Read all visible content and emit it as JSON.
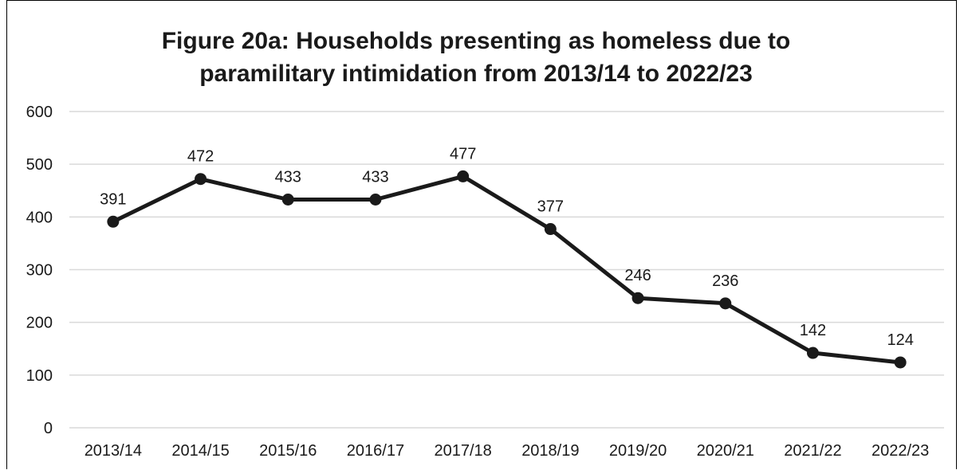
{
  "chart_data": {
    "type": "line",
    "title_lines": [
      "Figure 20a: Households presenting as homeless due to",
      "paramilitary intimidation from 2013/14 to 2022/23"
    ],
    "categories": [
      "2013/14",
      "2014/15",
      "2015/16",
      "2016/17",
      "2017/18",
      "2018/19",
      "2019/20",
      "2020/21",
      "2021/22",
      "2022/23"
    ],
    "series": [
      {
        "values": [
          391,
          472,
          433,
          433,
          477,
          377,
          246,
          236,
          142,
          124
        ]
      }
    ],
    "data_labels": [
      "391",
      "472",
      "433",
      "433",
      "477",
      "377",
      "246",
      "236",
      "142",
      "124"
    ],
    "y_ticks": [
      "0",
      "100",
      "200",
      "300",
      "400",
      "500",
      "600"
    ],
    "ylim": [
      0,
      600
    ],
    "grid": true,
    "legend": "none",
    "colors": {
      "line": "#1a1a1a",
      "grid": "#d9d9d9",
      "text": "#1a1a1a"
    }
  }
}
